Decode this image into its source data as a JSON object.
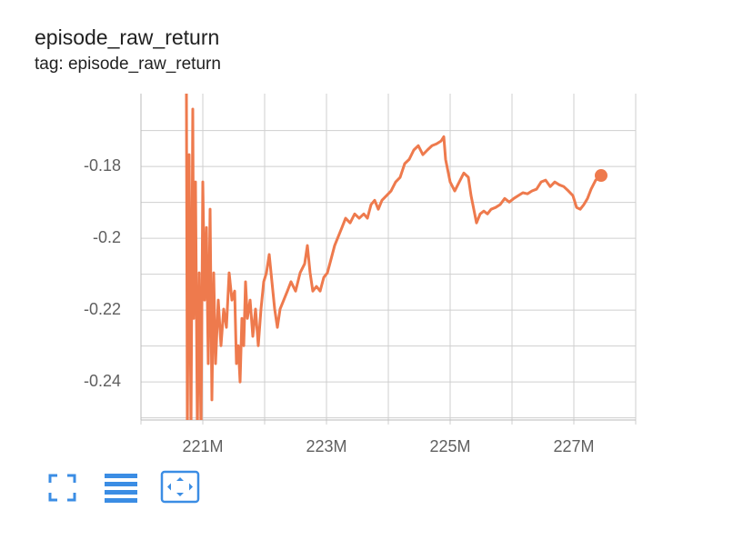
{
  "chart_data": {
    "type": "line",
    "title": "episode_raw_return",
    "subtitle": "tag: episode_raw_return",
    "color": "#ee7a4d",
    "grid": true,
    "xlim": [
      220000000.0,
      228000000.0
    ],
    "ylim": [
      -0.2506,
      -0.1597
    ],
    "xticks": [
      {
        "value": 221000000.0,
        "label": "221M"
      },
      {
        "value": 223000000.0,
        "label": "223M"
      },
      {
        "value": 225000000.0,
        "label": "225M"
      },
      {
        "value": 227000000.0,
        "label": "227M"
      }
    ],
    "xminor": [
      220000000.0,
      222000000.0,
      224000000.0,
      226000000.0,
      228000000.0
    ],
    "yticks": [
      -0.18,
      -0.2,
      -0.22,
      -0.24
    ],
    "yminor": [
      -0.17,
      -0.19,
      -0.21,
      -0.23,
      -0.25
    ],
    "x": [
      220735000.0,
      220750000.0,
      220779000.0,
      220809000.0,
      220838000.0,
      220853000.0,
      220882000.0,
      220912000.0,
      220941000.0,
      220971000.0,
      221000000.0,
      221029000.0,
      221059000.0,
      221088000.0,
      221118000.0,
      221147000.0,
      221176000.0,
      221206000.0,
      221250000.0,
      221294000.0,
      221338000.0,
      221382000.0,
      221426000.0,
      221471000.0,
      221515000.0,
      221544000.0,
      221574000.0,
      221603000.0,
      221632000.0,
      221662000.0,
      221691000.0,
      221721000.0,
      221765000.0,
      221809000.0,
      221853000.0,
      221897000.0,
      221941000.0,
      221985000.0,
      222029000.0,
      222074000.0,
      222118000.0,
      222162000.0,
      222206000.0,
      222250000.0,
      222309000.0,
      222368000.0,
      222426000.0,
      222500000.0,
      222574000.0,
      222647000.0,
      222691000.0,
      222735000.0,
      222779000.0,
      222838000.0,
      222897000.0,
      222956000.0,
      223015000.0,
      223074000.0,
      223132000.0,
      223191000.0,
      223250000.0,
      223309000.0,
      223382000.0,
      223456000.0,
      223529000.0,
      223603000.0,
      223662000.0,
      223721000.0,
      223779000.0,
      223838000.0,
      223897000.0,
      223971000.0,
      224044000.0,
      224118000.0,
      224191000.0,
      224265000.0,
      224338000.0,
      224412000.0,
      224485000.0,
      224559000.0,
      224632000.0,
      224706000.0,
      224779000.0,
      224853000.0,
      224897000.0,
      224926000.0,
      225000000.0,
      225074000.0,
      225147000.0,
      225221000.0,
      225294000.0,
      225338000.0,
      225382000.0,
      225426000.0,
      225485000.0,
      225544000.0,
      225603000.0,
      225662000.0,
      225735000.0,
      225809000.0,
      225882000.0,
      225956000.0,
      226029000.0,
      226103000.0,
      226176000.0,
      226250000.0,
      226324000.0,
      226397000.0,
      226471000.0,
      226544000.0,
      226618000.0,
      226691000.0,
      226765000.0,
      226838000.0,
      226912000.0,
      226985000.0,
      227044000.0,
      227103000.0,
      227162000.0,
      227221000.0,
      227279000.0,
      227353000.0,
      227441000.0
    ],
    "values": [
      -0.1577,
      -0.254,
      -0.1767,
      -0.254,
      -0.164,
      -0.2223,
      -0.1843,
      -0.254,
      -0.2096,
      -0.254,
      -0.1843,
      -0.2172,
      -0.197,
      -0.2349,
      -0.1919,
      -0.245,
      -0.2096,
      -0.2349,
      -0.2172,
      -0.2299,
      -0.2197,
      -0.2248,
      -0.2096,
      -0.2172,
      -0.2147,
      -0.2349,
      -0.2299,
      -0.24,
      -0.2223,
      -0.2299,
      -0.2121,
      -0.2223,
      -0.2172,
      -0.2273,
      -0.2197,
      -0.2299,
      -0.2197,
      -0.2121,
      -0.2096,
      -0.2045,
      -0.2121,
      -0.2197,
      -0.2248,
      -0.2197,
      -0.2172,
      -0.2147,
      -0.2121,
      -0.2147,
      -0.2096,
      -0.2071,
      -0.202,
      -0.2096,
      -0.2147,
      -0.2134,
      -0.2147,
      -0.2109,
      -0.2096,
      -0.2058,
      -0.202,
      -0.1995,
      -0.197,
      -0.1944,
      -0.1957,
      -0.1932,
      -0.1944,
      -0.1932,
      -0.1944,
      -0.1906,
      -0.1894,
      -0.1919,
      -0.1894,
      -0.1881,
      -0.1868,
      -0.1843,
      -0.183,
      -0.1792,
      -0.178,
      -0.1754,
      -0.1742,
      -0.1767,
      -0.1754,
      -0.1742,
      -0.1737,
      -0.1729,
      -0.1717,
      -0.178,
      -0.1843,
      -0.1868,
      -0.1843,
      -0.1818,
      -0.183,
      -0.1881,
      -0.1919,
      -0.1957,
      -0.1932,
      -0.1924,
      -0.1932,
      -0.1919,
      -0.1914,
      -0.1906,
      -0.1889,
      -0.1899,
      -0.1889,
      -0.1881,
      -0.1873,
      -0.1876,
      -0.1868,
      -0.1863,
      -0.1843,
      -0.1838,
      -0.1856,
      -0.1843,
      -0.1851,
      -0.1856,
      -0.1868,
      -0.1881,
      -0.1914,
      -0.1919,
      -0.1906,
      -0.1889,
      -0.1863,
      -0.1838,
      -0.1825
    ]
  }
}
